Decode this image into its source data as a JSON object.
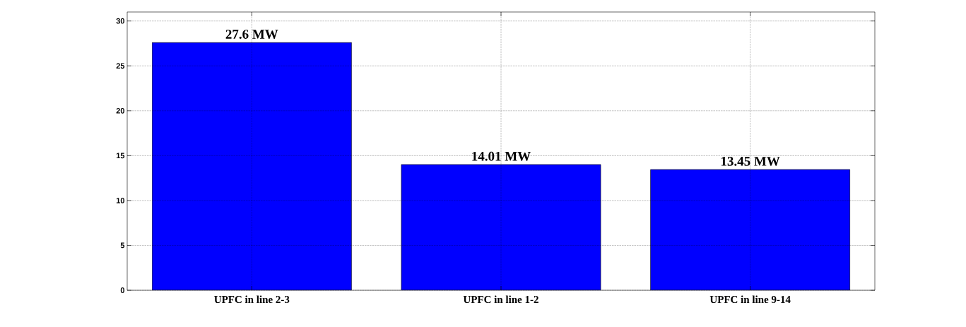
{
  "chart_data": {
    "type": "bar",
    "categories": [
      "UPFC in line 2-3",
      "UPFC in line 1-2",
      "UPFC in line 9-14"
    ],
    "values": [
      27.6,
      14.01,
      13.45
    ],
    "value_labels": [
      "27.6 MW",
      "14.01 MW",
      "13.45 MW"
    ],
    "color": "#0000ff",
    "ylim": [
      0,
      31
    ],
    "yticks": [
      0,
      5,
      10,
      15,
      20,
      25,
      30
    ],
    "grid": true
  }
}
